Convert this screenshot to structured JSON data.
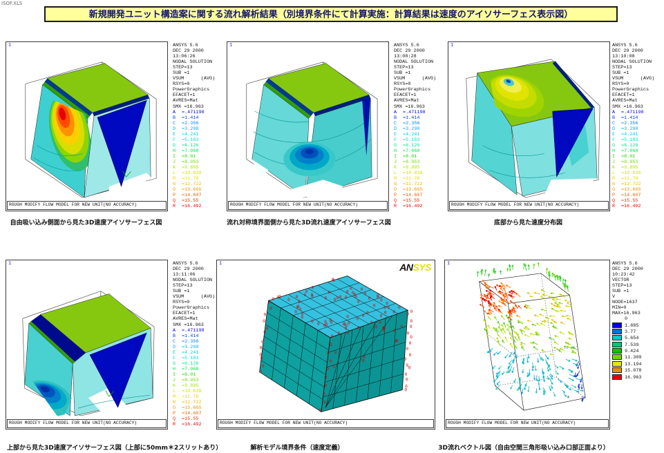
{
  "app": {
    "file_label": "ISOF.XLS",
    "title": "新規開発ユニット構造案に関する流れ解析結果（別境界条件にて計算実施：計算結果は速度のアイソサーフェス表示図）",
    "title_bg": "#FFFF9C"
  },
  "banner_text": "ROUGH MODIFY FLOW MODEL FOR NEW UNIT(NO ACCURACY)",
  "ansys_logo": {
    "black": "AN",
    "yellow": "SYS"
  },
  "contour_legend": {
    "entries": [
      [
        "A",
        "=.471198"
      ],
      [
        "B",
        "=1.414"
      ],
      [
        "C",
        "=2.356"
      ],
      [
        "D",
        "=3.298"
      ],
      [
        "E",
        "=4.241"
      ],
      [
        "F",
        "=5.183"
      ],
      [
        "G",
        "=6.126"
      ],
      [
        "H",
        "=7.068"
      ],
      [
        "I",
        "=8.01"
      ],
      [
        "J",
        "=8.953"
      ],
      [
        "K",
        "=9.895"
      ],
      [
        "L",
        "=10.838"
      ],
      [
        "M",
        "=11.78"
      ],
      [
        "N",
        "=12.722"
      ],
      [
        "O",
        "=13.665"
      ],
      [
        "P",
        "=14.607"
      ],
      [
        "Q",
        "=15.55"
      ],
      [
        "R",
        "=16.492"
      ]
    ],
    "colors": [
      "#0000F0",
      "#0040F0",
      "#0080F0",
      "#00A8F0",
      "#00C8E0",
      "#00E0C8",
      "#00E090",
      "#00E048",
      "#20D800",
      "#70D800",
      "#A8E000",
      "#D0E000",
      "#E8D800",
      "#F0B800",
      "#F09000",
      "#F06000",
      "#F03000",
      "#E80000"
    ]
  },
  "panels": [
    {
      "type": "contour",
      "window_label": "1",
      "caption": "自由吸い込み側面から見た3D速度アイソサーフェス図",
      "header": [
        "ANSYS 5.6",
        "DEC 29 2000",
        "13:06:26",
        "NODAL SOLUTION",
        "STEP=13",
        "SUB =1",
        "VSUM      (AVG)",
        "RSYS=0",
        "PowerGraphics",
        "EFACET=1",
        "AVRES=Mat",
        "SMX =16.963"
      ]
    },
    {
      "type": "contour",
      "window_label": "1",
      "caption": "流れ対称境界面側から見た3D流れ速度アイソサーフェス図",
      "header": [
        "ANSYS 5.6",
        "DEC 29 2000",
        "13:08:28",
        "NODAL SOLUTION",
        "STEP=13",
        "SUB =1",
        "VSUM      (AVG)",
        "RSYS=0",
        "PowerGraphics",
        "EFACET=1",
        "AVRES=Mat",
        "SMX =16.963"
      ]
    },
    {
      "type": "contour",
      "window_label": "1",
      "caption": "底部から見た速度分布図",
      "header": [
        "ANSYS 5.6",
        "DEC 29 2000",
        "13:10:08",
        "NODAL SOLUTION",
        "STEP=13",
        "SUB =1",
        "VSUM      (AVG)",
        "RSYS=0",
        "PowerGraphics",
        "EFACET=1",
        "AVRES=Mat",
        "SMX =16.963"
      ]
    },
    {
      "type": "contour",
      "window_label": "1",
      "caption": "上部から見た3D速度アイソサーフェス図（上部に50mm＊2スリットあり）",
      "header": [
        "ANSYS 5.6",
        "DEC 29 2000",
        "13:11:06",
        "NODAL SOLUTION",
        "STEP=13",
        "SUB =1",
        "VSUM      (AVG)",
        "RSYS=0",
        "PowerGraphics",
        "EFACET=1",
        "AVRES=Mat",
        "SMX =16.963"
      ]
    },
    {
      "type": "mesh",
      "window_label": "1",
      "caption": "解析モデル境界条件（速度定義）",
      "marker_label": "0"
    },
    {
      "type": "vector",
      "window_label": "1",
      "caption": "3D流れベクトル図（自由空間三角形吸い込み口部正面より）",
      "axis_label": "x",
      "header": [
        "ANSYS 5.6",
        "DEC 29 2000",
        "10:23:42",
        "VECTOR",
        "STEP=13",
        "SUB =1",
        "V",
        "NODE=1637",
        "MIN=0",
        "MAX=16.963"
      ],
      "scale": {
        "min_label": "0",
        "values": [
          "1.885",
          "3.77",
          "5.654",
          "7.539",
          "9.424",
          "11.309",
          "13.194",
          "15.078",
          "16.963"
        ],
        "colors": [
          "#0000E8",
          "#0070E8",
          "#00C8C8",
          "#00C878",
          "#00C800",
          "#70D800",
          "#E8E800",
          "#E89000",
          "#E80000"
        ]
      }
    }
  ]
}
